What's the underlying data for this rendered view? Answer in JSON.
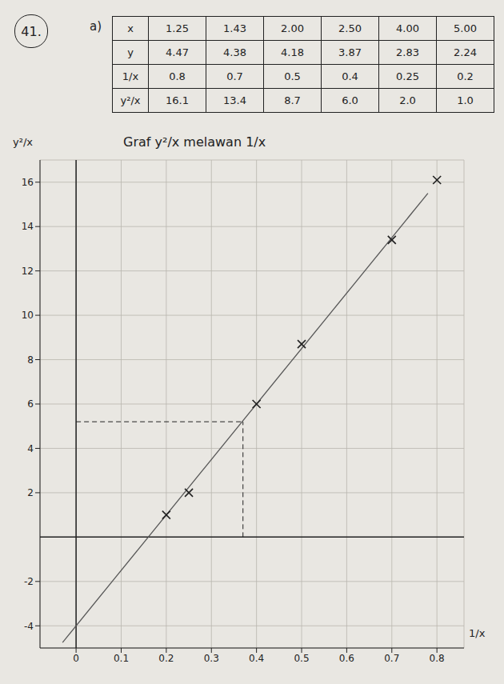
{
  "question": "41.",
  "part": "a)",
  "table": {
    "rows": [
      {
        "label": "x",
        "values": [
          "1.25",
          "1.43",
          "2.00",
          "2.50",
          "4.00",
          "5.00"
        ]
      },
      {
        "label": "y",
        "values": [
          "4.47",
          "4.38",
          "4.18",
          "3.87",
          "2.83",
          "2.24"
        ]
      },
      {
        "label": "1/x",
        "values": [
          "0.8",
          "0.7",
          "0.5",
          "0.4",
          "0.25",
          "0.2"
        ]
      },
      {
        "label": "y²/x",
        "values": [
          "16.1",
          "13.4",
          "8.7",
          "6.0",
          "2.0",
          "1.0"
        ]
      }
    ]
  },
  "chart_data": {
    "type": "scatter",
    "title": "Graf y²/x melawan 1/x",
    "x_label": "1/x",
    "y_label": "y²/x",
    "x": [
      0.8,
      0.7,
      0.5,
      0.4,
      0.25,
      0.2
    ],
    "values": [
      16.1,
      13.4,
      8.7,
      6.0,
      2.0,
      1.0
    ],
    "color": "#222222",
    "marker": "x",
    "best_fit": {
      "x": [
        -0.03,
        0.78
      ],
      "y": [
        -4.75,
        15.5
      ],
      "color": "#555555"
    },
    "reading": {
      "x": 0.37,
      "y": 5.2,
      "line_style": "dashed"
    },
    "axes_cross": {
      "x": 0,
      "y": 0
    },
    "xlim": [
      -0.08,
      0.86
    ],
    "ylim": [
      -5,
      17
    ],
    "xticks": [
      0,
      0.1,
      0.2,
      0.3,
      0.4,
      0.5,
      0.6,
      0.7,
      0.8
    ],
    "yticks": [
      -4,
      -2,
      2,
      4,
      6,
      8,
      10,
      12,
      14,
      16
    ],
    "grid": true
  }
}
